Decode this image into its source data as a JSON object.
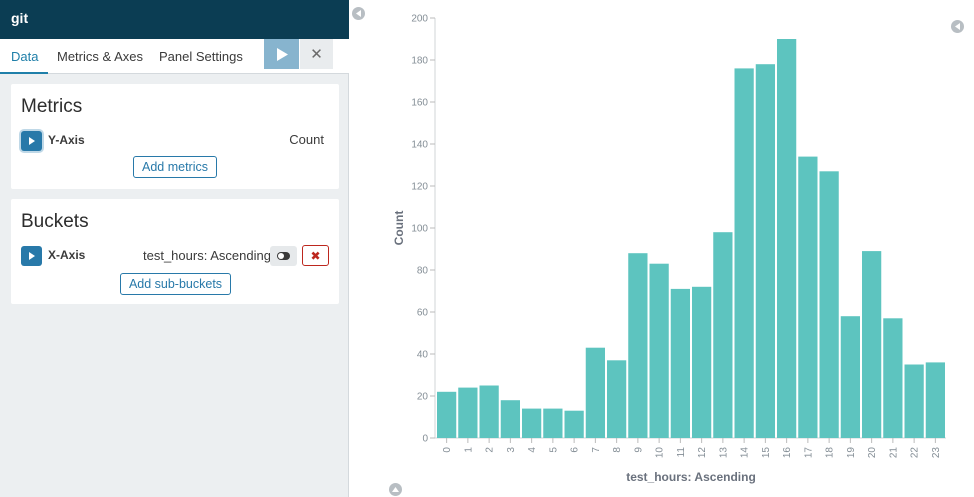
{
  "app": {
    "title": "git"
  },
  "tabs": [
    {
      "label": "Data",
      "active": true
    },
    {
      "label": "Metrics & Axes",
      "active": false
    },
    {
      "label": "Panel Settings",
      "active": false
    }
  ],
  "toolbar": {
    "run_icon": "play-icon",
    "close_icon": "close-icon"
  },
  "metrics": {
    "title": "Metrics",
    "y_axis": {
      "label": "Y-Axis",
      "value": "Count"
    },
    "add_button": "Add metrics"
  },
  "buckets": {
    "title": "Buckets",
    "x_axis": {
      "label": "X-Axis",
      "value": "test_hours: Ascending"
    },
    "add_button": "Add sub-buckets"
  },
  "colors": {
    "bar": "#5dc4bf",
    "header_bg": "#0b3d53",
    "accent": "#2879a9",
    "danger": "#bd271e",
    "run_button": "#87b4ce"
  },
  "chart_data": {
    "type": "bar",
    "categories": [
      "0",
      "1",
      "2",
      "3",
      "4",
      "5",
      "6",
      "7",
      "8",
      "9",
      "10",
      "11",
      "12",
      "13",
      "14",
      "15",
      "16",
      "17",
      "18",
      "19",
      "20",
      "21",
      "22",
      "23"
    ],
    "values": [
      22,
      24,
      25,
      18,
      14,
      14,
      13,
      43,
      37,
      88,
      83,
      71,
      72,
      98,
      176,
      178,
      190,
      134,
      127,
      58,
      89,
      57,
      35,
      36
    ],
    "xlabel": "test_hours: Ascending",
    "ylabel": "Count",
    "ylim": [
      0,
      200
    ],
    "yticks": [
      0,
      20,
      40,
      60,
      80,
      100,
      120,
      140,
      160,
      180,
      200
    ],
    "grid": false
  }
}
